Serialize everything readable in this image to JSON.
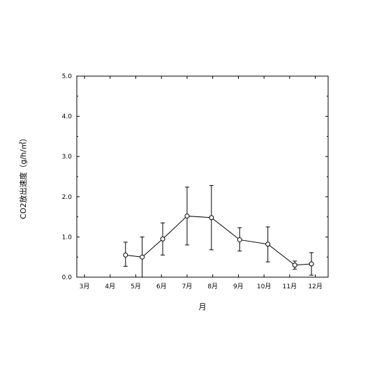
{
  "chart_data": {
    "type": "line",
    "title": "",
    "xlabel": "月",
    "ylabel": "CO2放出速度（g/h/㎡）",
    "xlim": [
      2.7,
      12.5
    ],
    "ylim": [
      0,
      5
    ],
    "grid": false,
    "legend": "none",
    "x_ticks": [
      {
        "value": 3,
        "label": "3月"
      },
      {
        "value": 4,
        "label": "4月"
      },
      {
        "value": 5,
        "label": "5月"
      },
      {
        "value": 6,
        "label": "6月"
      },
      {
        "value": 7,
        "label": "7月"
      },
      {
        "value": 8,
        "label": "8月"
      },
      {
        "value": 9,
        "label": "9月"
      },
      {
        "value": 10,
        "label": "10月"
      },
      {
        "value": 11,
        "label": "11月"
      },
      {
        "value": 12,
        "label": "12月"
      }
    ],
    "y_ticks": [
      {
        "value": 0,
        "label": "0.0"
      },
      {
        "value": 1,
        "label": "1.0"
      },
      {
        "value": 2,
        "label": "2.0"
      },
      {
        "value": 3,
        "label": "3.0"
      },
      {
        "value": 4,
        "label": "4.0"
      },
      {
        "value": 5,
        "label": "5.0"
      }
    ],
    "series": [
      {
        "marker": "open-circle",
        "color": "#000000",
        "points": [
          {
            "x": 4.6,
            "y": 0.55,
            "err_low": 0.27,
            "err_high": 0.87
          },
          {
            "x": 5.25,
            "y": 0.5,
            "err_low": 0.0,
            "err_high": 1.0
          },
          {
            "x": 6.05,
            "y": 0.95,
            "err_low": 0.55,
            "err_high": 1.35
          },
          {
            "x": 7.0,
            "y": 1.52,
            "err_low": 0.8,
            "err_high": 2.24
          },
          {
            "x": 7.95,
            "y": 1.48,
            "err_low": 0.68,
            "err_high": 2.28
          },
          {
            "x": 9.05,
            "y": 0.93,
            "err_low": 0.65,
            "err_high": 1.23
          },
          {
            "x": 10.15,
            "y": 0.82,
            "err_low": 0.38,
            "err_high": 1.25
          },
          {
            "x": 11.2,
            "y": 0.3,
            "err_low": 0.2,
            "err_high": 0.4
          },
          {
            "x": 11.85,
            "y": 0.33,
            "err_low": 0.05,
            "err_high": 0.61
          }
        ]
      }
    ]
  }
}
